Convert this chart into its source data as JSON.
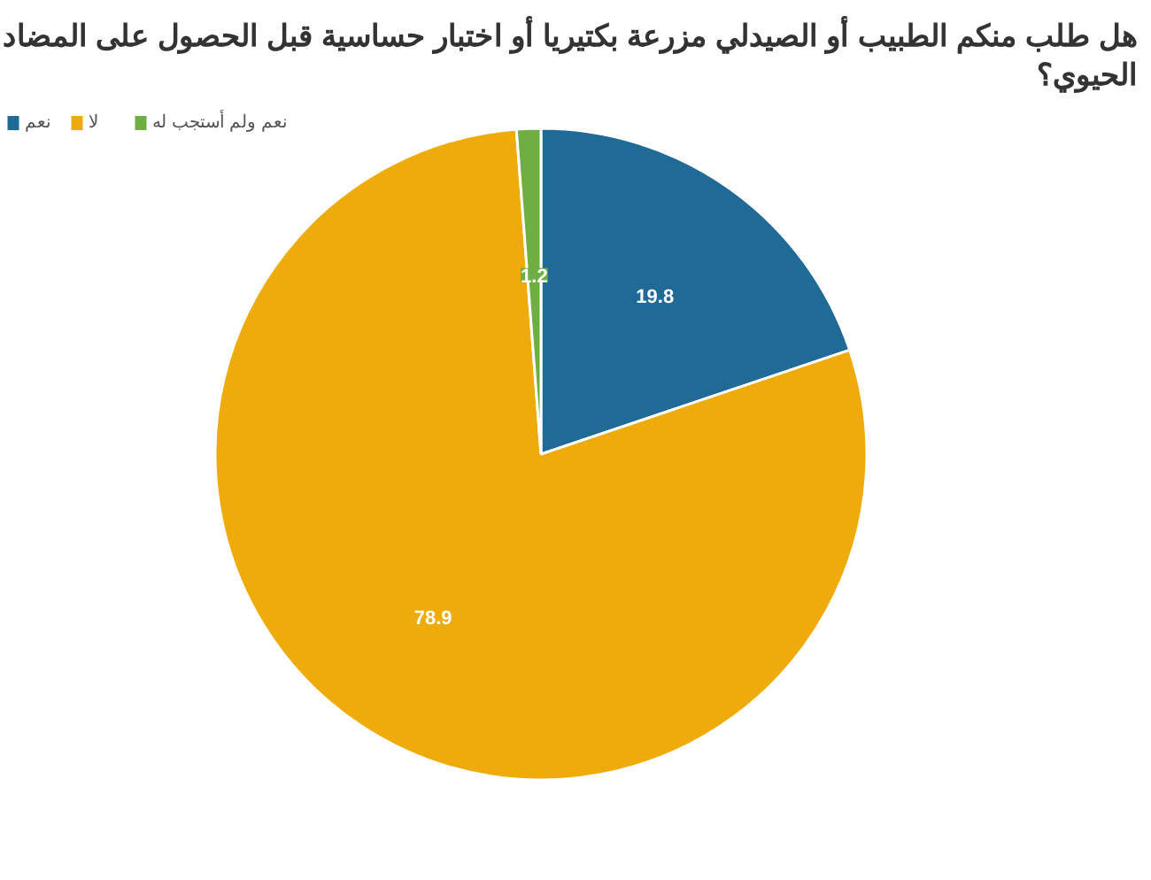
{
  "chart_data": {
    "type": "pie",
    "title": "هل طلب منكم الطبيب أو الصيدلي مزرعة بكتيريا أو اختبار حساسية قبل الحصول على المضاد الحيوي؟",
    "categories": [
      "نعم",
      "لا",
      "نعم ولم أستجب له"
    ],
    "values": [
      19.8,
      78.9,
      1.2
    ],
    "colors": [
      "#1f6a96",
      "#eeab0a",
      "#6fae43"
    ],
    "data_labels": true,
    "legend": "top left"
  }
}
